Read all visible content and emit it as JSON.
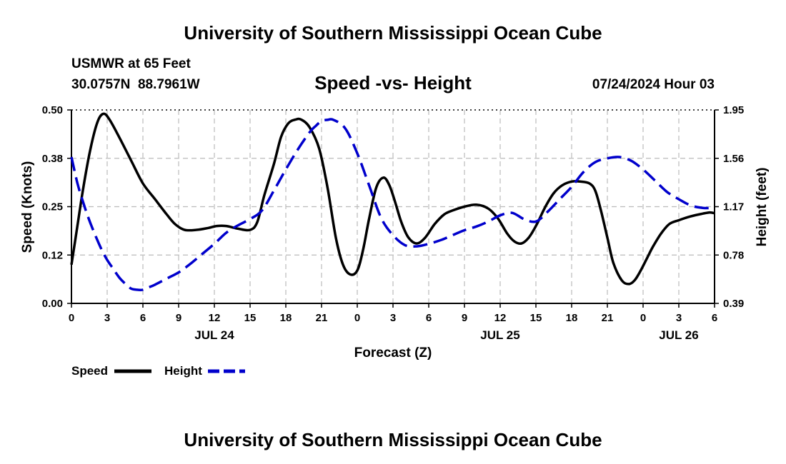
{
  "chart_data": {
    "type": "line",
    "title": "University of Southern Mississippi Ocean Cube",
    "footer_title": "University of Southern Mississippi Ocean Cube",
    "subtitle": "Speed -vs- Height",
    "station": "USMWR at 65 Feet",
    "location": "30.0757N  88.7961W",
    "timestamp": "07/24/2024 Hour 03",
    "xlabel": "Forecast (Z)",
    "ylabel_left": "Speed (Knots)",
    "ylabel_right": "Height (feet)",
    "x_range": [
      0,
      54
    ],
    "x_tick_labels": [
      "0",
      "3",
      "6",
      "9",
      "12",
      "15",
      "18",
      "21",
      "0",
      "3",
      "6",
      "9",
      "12",
      "15",
      "18",
      "21",
      "0",
      "3",
      "6"
    ],
    "date_labels": [
      {
        "x": 12,
        "label": "JUL 24"
      },
      {
        "x": 36,
        "label": "JUL 25"
      },
      {
        "x": 51,
        "label": "JUL 26"
      }
    ],
    "left_axis": {
      "ylim": [
        0,
        0.5
      ],
      "ticks": [
        "0.00",
        "0.12",
        "0.25",
        "0.38",
        "0.50"
      ]
    },
    "right_axis": {
      "ylim": [
        0.39,
        1.95
      ],
      "ticks": [
        "0.39",
        "0.78",
        "1.17",
        "1.56",
        "1.95"
      ]
    },
    "grid": true,
    "legend": {
      "position": "bottom-left",
      "speed_label": "Speed",
      "height_label": "Height"
    },
    "series": [
      {
        "name": "Speed",
        "axis": "left",
        "color": "#000000",
        "dash": "solid",
        "x": [
          0,
          0.5,
          1,
          1.6,
          2.2,
          2.7,
          3.2,
          4,
          5,
          6,
          7,
          8,
          8.7,
          9.5,
          10.5,
          11.5,
          12.2,
          13,
          14,
          15,
          15.6,
          16.2,
          17,
          17.6,
          18.2,
          18.8,
          19.3,
          20,
          20.8,
          21.5,
          22.2,
          22.8,
          23.4,
          24,
          24.5,
          25,
          25.6,
          26.2,
          26.7,
          27.2,
          27.7,
          28.3,
          29,
          29.7,
          30.5,
          31.3,
          32,
          33,
          34,
          35,
          35.8,
          36.6,
          37.2,
          37.8,
          38.4,
          39,
          39.8,
          40.5,
          41.2,
          42,
          42.7,
          43.5,
          44,
          44.5,
          45,
          45.5,
          46.2,
          46.8,
          47.3,
          47.8,
          48.3,
          48.8,
          49.5,
          50.2,
          51,
          52,
          53,
          53.6,
          54
        ],
        "values": [
          0.1,
          0.2,
          0.3,
          0.4,
          0.47,
          0.49,
          0.475,
          0.43,
          0.37,
          0.31,
          0.27,
          0.23,
          0.205,
          0.19,
          0.19,
          0.195,
          0.2,
          0.2,
          0.193,
          0.19,
          0.21,
          0.28,
          0.36,
          0.43,
          0.465,
          0.475,
          0.475,
          0.455,
          0.4,
          0.3,
          0.17,
          0.1,
          0.075,
          0.085,
          0.14,
          0.22,
          0.3,
          0.325,
          0.305,
          0.26,
          0.21,
          0.17,
          0.155,
          0.17,
          0.205,
          0.23,
          0.24,
          0.25,
          0.255,
          0.245,
          0.22,
          0.18,
          0.16,
          0.155,
          0.17,
          0.2,
          0.25,
          0.285,
          0.305,
          0.315,
          0.315,
          0.31,
          0.29,
          0.235,
          0.17,
          0.105,
          0.06,
          0.05,
          0.06,
          0.085,
          0.115,
          0.145,
          0.18,
          0.205,
          0.215,
          0.225,
          0.232,
          0.235,
          0.233
        ]
      },
      {
        "name": "Height",
        "axis": "right",
        "color": "#0000cc",
        "dash": "dashed",
        "x": [
          0,
          0.5,
          1,
          1.5,
          2,
          2.5,
          3,
          3.5,
          4,
          4.5,
          5,
          5.5,
          6,
          6.5,
          7,
          8,
          9,
          10,
          11,
          12,
          13,
          14,
          15,
          16,
          17,
          18,
          19,
          20,
          20.5,
          21,
          21.5,
          22,
          23,
          24,
          25,
          26,
          27,
          28,
          29,
          30,
          31,
          32,
          33,
          34,
          35,
          36,
          37,
          38,
          39,
          40,
          41,
          42,
          43,
          44,
          45,
          46,
          47,
          48,
          49,
          50,
          51,
          52,
          53,
          54
        ],
        "values": [
          1.57,
          1.36,
          1.2,
          1.06,
          0.94,
          0.83,
          0.74,
          0.67,
          0.6,
          0.55,
          0.51,
          0.5,
          0.5,
          0.52,
          0.54,
          0.59,
          0.64,
          0.71,
          0.79,
          0.87,
          0.96,
          1.02,
          1.07,
          1.14,
          1.3,
          1.47,
          1.63,
          1.77,
          1.82,
          1.86,
          1.87,
          1.87,
          1.8,
          1.6,
          1.34,
          1.08,
          0.94,
          0.86,
          0.85,
          0.87,
          0.9,
          0.94,
          0.98,
          1.01,
          1.05,
          1.1,
          1.12,
          1.07,
          1.05,
          1.13,
          1.23,
          1.33,
          1.45,
          1.53,
          1.56,
          1.57,
          1.54,
          1.47,
          1.38,
          1.29,
          1.23,
          1.18,
          1.16,
          1.16
        ]
      }
    ]
  }
}
